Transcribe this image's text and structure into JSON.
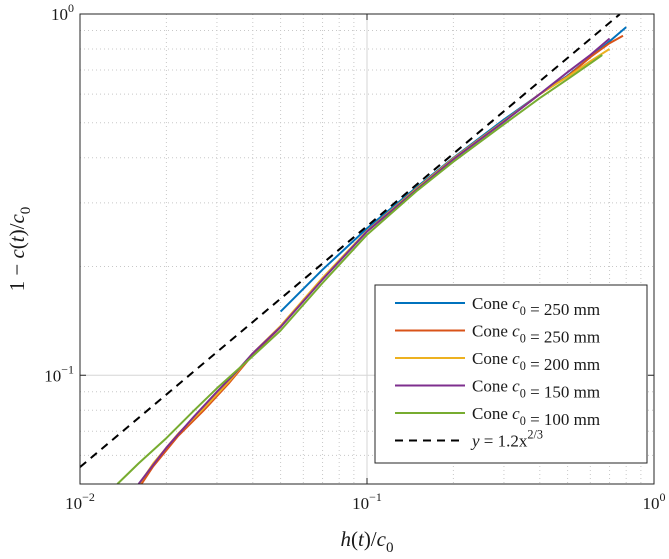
{
  "chart_data": {
    "type": "line",
    "title": "",
    "xlabel": "h(t)/c0",
    "ylabel": "1 − c(t)/c0",
    "xscale": "log",
    "yscale": "log",
    "xlim": [
      0.01,
      1
    ],
    "ylim": [
      0.05,
      1
    ],
    "grid": "major and minor, dotted",
    "legend_position": "bottom-right",
    "x_ticks": [
      {
        "value": 0.01,
        "base": "10",
        "exp": "−2"
      },
      {
        "value": 0.1,
        "base": "10",
        "exp": "−1"
      },
      {
        "value": 1,
        "base": "10",
        "exp": "0"
      }
    ],
    "y_ticks": [
      {
        "value": 0.1,
        "base": "10",
        "exp": "−1"
      },
      {
        "value": 1,
        "base": "10",
        "exp": "0"
      }
    ],
    "series": [
      {
        "name": "Cone c0 = 250 mm",
        "color": "#0072BD",
        "dash": "",
        "x": [
          0.05,
          0.07,
          0.1,
          0.15,
          0.2,
          0.3,
          0.4,
          0.5,
          0.6,
          0.7,
          0.8
        ],
        "y": [
          0.15,
          0.196,
          0.255,
          0.333,
          0.4,
          0.51,
          0.6,
          0.675,
          0.76,
          0.84,
          0.92
        ]
      },
      {
        "name": "Cone c0 = 250 mm",
        "color": "#D95319",
        "dash": "",
        "x": [
          0.015,
          0.018,
          0.022,
          0.027,
          0.033,
          0.04,
          0.05,
          0.07,
          0.1,
          0.15,
          0.2,
          0.3,
          0.4,
          0.5,
          0.6,
          0.7,
          0.78
        ],
        "y": [
          0.045,
          0.056,
          0.068,
          0.08,
          0.095,
          0.114,
          0.136,
          0.185,
          0.25,
          0.33,
          0.398,
          0.505,
          0.6,
          0.672,
          0.76,
          0.83,
          0.87
        ]
      },
      {
        "name": "Cone c0 = 200 mm",
        "color": "#EDB120",
        "dash": "",
        "x": [
          0.015,
          0.018,
          0.022,
          0.027,
          0.033,
          0.04,
          0.05,
          0.07,
          0.1,
          0.15,
          0.2,
          0.3,
          0.4,
          0.5,
          0.6,
          0.7
        ],
        "y": [
          0.046,
          0.057,
          0.069,
          0.081,
          0.096,
          0.115,
          0.137,
          0.186,
          0.251,
          0.33,
          0.398,
          0.505,
          0.6,
          0.67,
          0.74,
          0.8
        ]
      },
      {
        "name": "Cone c0 = 150 mm",
        "color": "#7E2F8E",
        "dash": "",
        "x": [
          0.016,
          0.02,
          0.025,
          0.03,
          0.035,
          0.04,
          0.05,
          0.07,
          0.1,
          0.15,
          0.2,
          0.3,
          0.4,
          0.5,
          0.6,
          0.7
        ],
        "y": [
          0.05,
          0.063,
          0.077,
          0.09,
          0.102,
          0.115,
          0.136,
          0.184,
          0.25,
          0.328,
          0.396,
          0.503,
          0.6,
          0.69,
          0.77,
          0.855
        ]
      },
      {
        "name": "Cone c0 = 100 mm",
        "color": "#77AC30",
        "dash": "",
        "x": [
          0.0135,
          0.016,
          0.02,
          0.025,
          0.03,
          0.04,
          0.05,
          0.07,
          0.1,
          0.15,
          0.2,
          0.3,
          0.4,
          0.5,
          0.6,
          0.66
        ],
        "y": [
          0.05,
          0.057,
          0.067,
          0.08,
          0.092,
          0.113,
          0.133,
          0.18,
          0.245,
          0.325,
          0.39,
          0.495,
          0.585,
          0.66,
          0.73,
          0.77
        ]
      },
      {
        "name": "y = 1.2x^(2/3)",
        "color": "#000000",
        "dash": "8,6",
        "x": [
          0.01,
          0.03,
          0.1,
          0.3,
          0.76
        ],
        "y": [
          0.0557,
          0.1159,
          0.2585,
          0.5377,
          0.9985
        ]
      }
    ],
    "legend": [
      {
        "prefix": "Cone ",
        "var": "c",
        "sub": "0",
        "suffix": " = 250 mm",
        "color": "#0072BD",
        "dash": ""
      },
      {
        "prefix": "Cone ",
        "var": "c",
        "sub": "0",
        "suffix": " = 250 mm",
        "color": "#D95319",
        "dash": ""
      },
      {
        "prefix": "Cone ",
        "var": "c",
        "sub": "0",
        "suffix": " = 200 mm",
        "color": "#EDB120",
        "dash": ""
      },
      {
        "prefix": "Cone ",
        "var": "c",
        "sub": "0",
        "suffix": " = 150 mm",
        "color": "#7E2F8E",
        "dash": ""
      },
      {
        "prefix": "Cone ",
        "var": "c",
        "sub": "0",
        "suffix": " = 100 mm",
        "color": "#77AC30",
        "dash": ""
      },
      {
        "prefix": "",
        "var": "y",
        "sub": "",
        "suffix": " = 1.2x",
        "sup": "2/3",
        "color": "#000000",
        "dash": "8,6"
      }
    ]
  }
}
